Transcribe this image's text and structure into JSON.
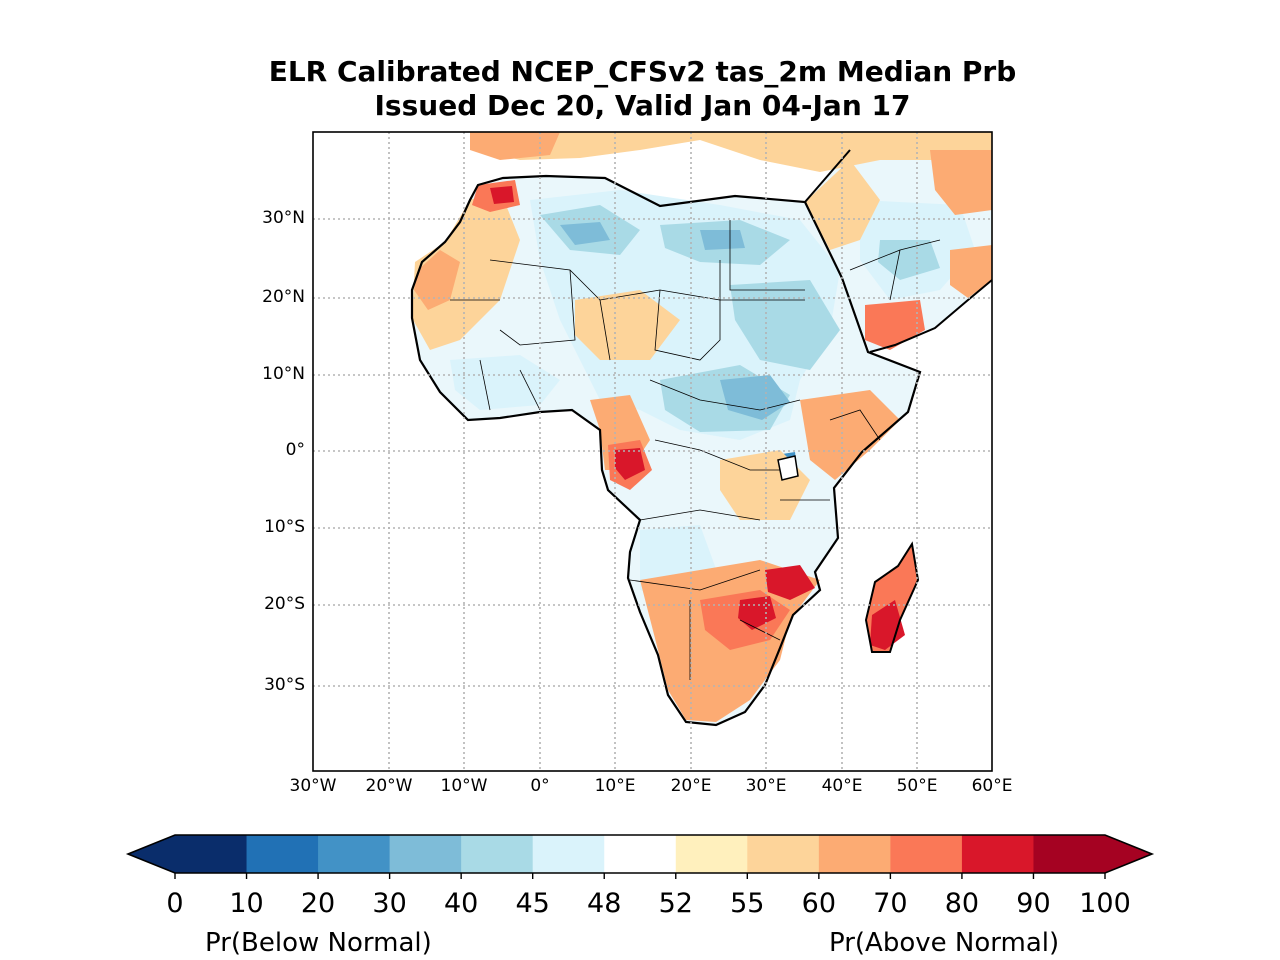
{
  "title": {
    "line1": "ELR Calibrated NCEP_CFSv2 tas_2m Median Prb",
    "line2": "Issued Dec 20, Valid Jan 04-Jan 17"
  },
  "map": {
    "lat_ticks": [
      "30°N",
      "20°N",
      "10°N",
      "0°",
      "10°S",
      "20°S",
      "30°S"
    ],
    "lon_ticks": [
      "30°W",
      "20°W",
      "10°W",
      "0°",
      "10°E",
      "20°E",
      "30°E",
      "40°E",
      "50°E",
      "60°E"
    ],
    "gridlines": true,
    "colors": {
      "land_below": "#a6d6e3",
      "land_above": "#fdae6b",
      "coast": "#000000"
    }
  },
  "colorbar": {
    "ticks": [
      "0",
      "10",
      "20",
      "30",
      "40",
      "45",
      "48",
      "52",
      "55",
      "60",
      "70",
      "80",
      "90",
      "100"
    ],
    "colors": [
      "#0a2d6b",
      "#2171b5",
      "#4292c6",
      "#7ebcd8",
      "#a9dae6",
      "#daf3fb",
      "#ffffff",
      "#fff0bd",
      "#fdd49a",
      "#fcab73",
      "#fa7857",
      "#d9172a",
      "#a50222"
    ],
    "extend_low_color": "#0a2d6b",
    "extend_high_color": "#a50222",
    "label_left": "Pr(Below Normal)",
    "label_right": "Pr(Above Normal)"
  }
}
